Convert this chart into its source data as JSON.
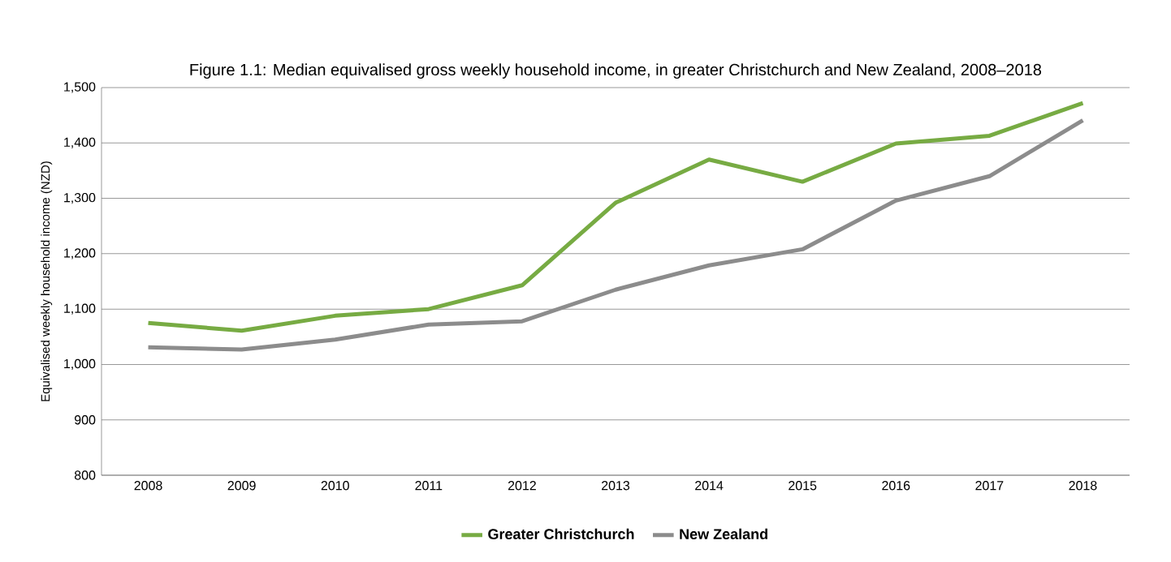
{
  "chart_data": {
    "type": "line",
    "title": "Figure 1.1: Median equivalised gross weekly household income, in greater Christchurch and New Zealand, 2008–2018",
    "ylabel": "Equivalised weekly household income (NZD)",
    "categories": [
      "2008",
      "2009",
      "2010",
      "2011",
      "2012",
      "2013",
      "2014",
      "2015",
      "2016",
      "2017",
      "2018"
    ],
    "series": [
      {
        "name": "Greater Christchurch",
        "color": "#77ab43",
        "values": [
          1075,
          1061,
          1088,
          1100,
          1143,
          1292,
          1370,
          1330,
          1399,
          1413,
          1472
        ]
      },
      {
        "name": "New Zealand",
        "color": "#8c8c8c",
        "values": [
          1031,
          1027,
          1045,
          1072,
          1078,
          1135,
          1179,
          1208,
          1296,
          1340,
          1441
        ]
      }
    ],
    "ylim": [
      800,
      1500
    ],
    "yticks": [
      {
        "value": 800,
        "label": "800"
      },
      {
        "value": 900,
        "label": "900"
      },
      {
        "value": 1000,
        "label": "1,000"
      },
      {
        "value": 1100,
        "label": "1,100"
      },
      {
        "value": 1200,
        "label": "1,200"
      },
      {
        "value": 1300,
        "label": "1,300"
      },
      {
        "value": 1400,
        "label": "1,400"
      },
      {
        "value": 1500,
        "label": "1,500"
      }
    ],
    "grid": "y",
    "legend": "bottom",
    "marker": "none",
    "line_style": "solid"
  }
}
